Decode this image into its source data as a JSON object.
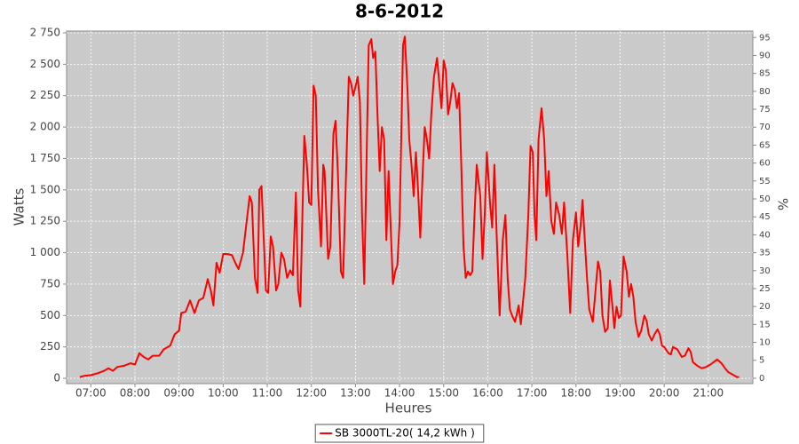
{
  "chart_data": {
    "type": "line",
    "title": "8-6-2012",
    "x_label": "Heures",
    "y_label": "Watts",
    "y2_label": "%",
    "grid": true,
    "legend": "bottom",
    "xlim": [
      6.45,
      22.01
    ],
    "xticks": [
      {
        "value": 7,
        "label": "07:00"
      },
      {
        "value": 8,
        "label": "08:00"
      },
      {
        "value": 9,
        "label": "09:00"
      },
      {
        "value": 10,
        "label": "10:00"
      },
      {
        "value": 11,
        "label": "11:00"
      },
      {
        "value": 12,
        "label": "12:00"
      },
      {
        "value": 13,
        "label": "13:00"
      },
      {
        "value": 14,
        "label": "14:00"
      },
      {
        "value": 15,
        "label": "15:00"
      },
      {
        "value": 16,
        "label": "16:00"
      },
      {
        "value": 17,
        "label": "17:00"
      },
      {
        "value": 18,
        "label": "18:00"
      },
      {
        "value": 19,
        "label": "19:00"
      },
      {
        "value": 20,
        "label": "20:00"
      },
      {
        "value": 21,
        "label": "21:00"
      }
    ],
    "ylim": [
      -42,
      2764
    ],
    "yticks": [
      0,
      250,
      500,
      750,
      {
        "value": 1000,
        "label": "1 000"
      },
      {
        "value": 1250,
        "label": "1 250"
      },
      {
        "value": 1500,
        "label": "1 500"
      },
      {
        "value": 1750,
        "label": "1 750"
      },
      {
        "value": 2000,
        "label": "2 000"
      },
      {
        "value": 2250,
        "label": "2 250"
      },
      {
        "value": 2500,
        "label": "2 500"
      },
      {
        "value": 2750,
        "label": "2 750"
      }
    ],
    "y2lim": [
      -1.5,
      96.8
    ],
    "y2ticks": [
      0,
      5,
      10,
      15,
      20,
      25,
      30,
      35,
      40,
      45,
      50,
      55,
      60,
      65,
      70,
      75,
      80,
      85,
      90,
      95
    ],
    "x": [
      6.75,
      6.85,
      7.0,
      7.15,
      7.3,
      7.4,
      7.5,
      7.6,
      7.75,
      7.9,
      8.0,
      8.1,
      8.2,
      8.3,
      8.4,
      8.55,
      8.65,
      8.8,
      8.9,
      9.0,
      9.05,
      9.15,
      9.25,
      9.35,
      9.45,
      9.55,
      9.65,
      9.72,
      9.78,
      9.85,
      9.92,
      10.0,
      10.1,
      10.2,
      10.3,
      10.35,
      10.45,
      10.55,
      10.6,
      10.65,
      10.72,
      10.78,
      10.82,
      10.87,
      10.97,
      11.02,
      11.08,
      11.13,
      11.2,
      11.25,
      11.32,
      11.38,
      11.45,
      11.52,
      11.58,
      11.65,
      11.7,
      11.75,
      11.79,
      11.84,
      11.9,
      11.95,
      12.0,
      12.05,
      12.1,
      12.15,
      12.22,
      12.27,
      12.3,
      12.38,
      12.43,
      12.5,
      12.55,
      12.6,
      12.67,
      12.72,
      12.8,
      12.85,
      12.9,
      12.95,
      13.02,
      13.05,
      13.1,
      13.15,
      13.2,
      13.25,
      13.3,
      13.36,
      13.4,
      13.45,
      13.5,
      13.55,
      13.6,
      13.65,
      13.7,
      13.75,
      13.8,
      13.85,
      13.9,
      13.95,
      14.0,
      14.08,
      14.12,
      14.18,
      14.22,
      14.27,
      14.32,
      14.37,
      14.42,
      14.47,
      14.52,
      14.57,
      14.62,
      14.67,
      14.72,
      14.78,
      14.85,
      14.9,
      14.95,
      15.0,
      15.05,
      15.1,
      15.15,
      15.2,
      15.25,
      15.3,
      15.35,
      15.4,
      15.45,
      15.5,
      15.55,
      15.6,
      15.65,
      15.7,
      15.75,
      15.83,
      15.88,
      15.93,
      15.98,
      16.05,
      16.1,
      16.15,
      16.2,
      16.27,
      16.34,
      16.4,
      16.45,
      16.5,
      16.55,
      16.62,
      16.7,
      16.75,
      16.85,
      16.92,
      16.97,
      17.02,
      17.06,
      17.1,
      17.15,
      17.22,
      17.28,
      17.33,
      17.38,
      17.44,
      17.5,
      17.55,
      17.62,
      17.68,
      17.73,
      17.8,
      17.87,
      17.93,
      18.0,
      18.05,
      18.1,
      18.15,
      18.2,
      18.25,
      18.3,
      18.38,
      18.43,
      18.5,
      18.55,
      18.6,
      18.66,
      18.72,
      18.77,
      18.82,
      18.87,
      18.92,
      18.97,
      19.02,
      19.08,
      19.15,
      19.2,
      19.25,
      19.3,
      19.35,
      19.42,
      19.48,
      19.55,
      19.6,
      19.65,
      19.72,
      19.78,
      19.85,
      19.9,
      19.95,
      20.0,
      20.1,
      20.15,
      20.2,
      20.3,
      20.4,
      20.47,
      20.55,
      20.6,
      20.65,
      20.75,
      20.85,
      20.95,
      21.05,
      21.2,
      21.3,
      21.38,
      21.45,
      21.55,
      21.65,
      21.7
    ],
    "series": [
      {
        "name": "SB 3000TL-20( 14,2 kWh )",
        "color": "#ff0000",
        "values": [
          10,
          20,
          25,
          40,
          60,
          80,
          60,
          90,
          100,
          120,
          110,
          200,
          170,
          150,
          180,
          180,
          230,
          260,
          350,
          380,
          520,
          530,
          620,
          520,
          620,
          640,
          790,
          700,
          580,
          920,
          840,
          990,
          990,
          980,
          900,
          870,
          1000,
          1300,
          1450,
          1400,
          800,
          680,
          1500,
          1530,
          700,
          680,
          1130,
          1050,
          700,
          750,
          1000,
          950,
          800,
          860,
          820,
          1480,
          700,
          570,
          1200,
          1930,
          1700,
          1400,
          1380,
          2330,
          2250,
          1500,
          1050,
          1700,
          1650,
          950,
          1050,
          1950,
          2050,
          1650,
          850,
          800,
          1800,
          2400,
          2350,
          2250,
          2350,
          2400,
          2200,
          1300,
          750,
          1700,
          2650,
          2700,
          2550,
          2600,
          2100,
          1650,
          2000,
          1900,
          1100,
          1650,
          1200,
          750,
          850,
          900,
          1250,
          2650,
          2720,
          2300,
          1900,
          1700,
          1450,
          1800,
          1500,
          1120,
          1600,
          2000,
          1900,
          1750,
          2100,
          2400,
          2550,
          2350,
          2150,
          2530,
          2450,
          2100,
          2200,
          2350,
          2300,
          2150,
          2270,
          1700,
          1050,
          800,
          850,
          820,
          850,
          1300,
          1700,
          1450,
          950,
          1300,
          1800,
          1400,
          1200,
          1700,
          1150,
          500,
          1100,
          1300,
          800,
          550,
          500,
          450,
          580,
          430,
          800,
          1300,
          1850,
          1800,
          1300,
          1100,
          1900,
          2150,
          1900,
          1450,
          1650,
          1250,
          1150,
          1400,
          1300,
          1150,
          1400,
          1000,
          520,
          1100,
          1320,
          1050,
          1200,
          1420,
          1100,
          800,
          550,
          450,
          650,
          930,
          850,
          500,
          370,
          400,
          780,
          600,
          400,
          570,
          480,
          500,
          970,
          850,
          650,
          750,
          650,
          450,
          330,
          380,
          500,
          460,
          350,
          300,
          350,
          390,
          350,
          260,
          250,
          200,
          190,
          250,
          230,
          170,
          180,
          240,
          210,
          130,
          100,
          80,
          90,
          110,
          150,
          120,
          80,
          50,
          30,
          10,
          10
        ]
      }
    ]
  }
}
